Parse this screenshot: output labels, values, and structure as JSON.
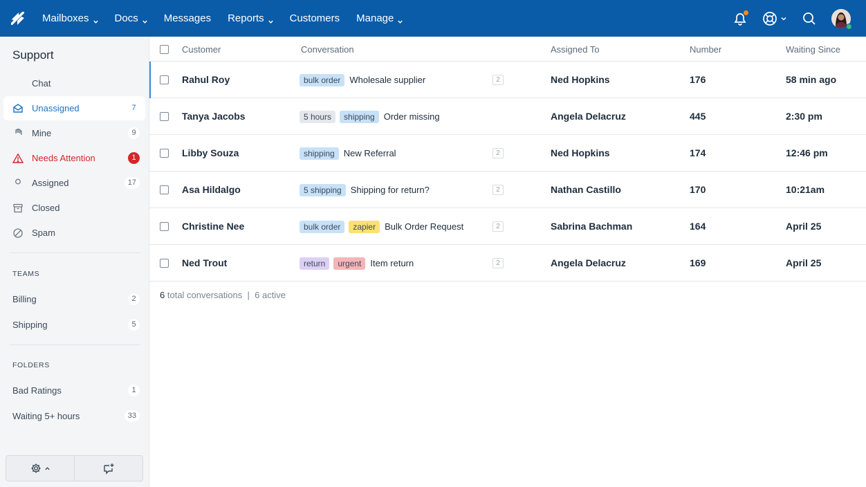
{
  "nav": {
    "items": [
      {
        "label": "Mailboxes",
        "dropdown": true
      },
      {
        "label": "Docs",
        "dropdown": true
      },
      {
        "label": "Messages",
        "dropdown": false
      },
      {
        "label": "Reports",
        "dropdown": true
      },
      {
        "label": "Customers",
        "dropdown": false
      },
      {
        "label": "Manage",
        "dropdown": true
      }
    ]
  },
  "sidebar": {
    "title": "Support",
    "items": [
      {
        "label": "Chat",
        "count": "",
        "icon": "chat-icon",
        "state": "normal"
      },
      {
        "label": "Unassigned",
        "count": "7",
        "icon": "inbox-icon",
        "state": "active"
      },
      {
        "label": "Mine",
        "count": "9",
        "icon": "hand-icon",
        "state": "normal"
      },
      {
        "label": "Needs Attention",
        "count": "1",
        "icon": "warning-icon",
        "state": "alert"
      },
      {
        "label": "Assigned",
        "count": "17",
        "icon": "user-icon",
        "state": "normal"
      },
      {
        "label": "Closed",
        "count": "",
        "icon": "archive-icon",
        "state": "normal"
      },
      {
        "label": "Spam",
        "count": "",
        "icon": "block-icon",
        "state": "normal"
      }
    ],
    "teams_heading": "TEAMS",
    "teams": [
      {
        "label": "Billing",
        "count": "2"
      },
      {
        "label": "Shipping",
        "count": "5"
      }
    ],
    "folders_heading": "FOLDERS",
    "folders": [
      {
        "label": "Bad Ratings",
        "count": "1"
      },
      {
        "label": "Waiting 5+ hours",
        "count": "33"
      }
    ]
  },
  "table": {
    "headers": {
      "customer": "Customer",
      "conversation": "Conversation",
      "assigned": "Assigned To",
      "number": "Number",
      "waiting": "Waiting Since"
    },
    "rows": [
      {
        "customer": "Rahul Roy",
        "tags": [
          {
            "text": "bulk order",
            "color": "#c7e1f7"
          }
        ],
        "subject": "Wholesale supplier",
        "thread": "2",
        "assigned": "Ned Hopkins",
        "number": "176",
        "waiting": "58 min ago",
        "selected": true
      },
      {
        "customer": "Tanya Jacobs",
        "tags": [
          {
            "text": "5 hours",
            "color": "#e4e7eb"
          },
          {
            "text": "shipping",
            "color": "#c7e1f7"
          }
        ],
        "subject": "Order missing",
        "thread": "",
        "assigned": "Angela Delacruz",
        "number": "445",
        "waiting": "2:30 pm",
        "selected": false
      },
      {
        "customer": "Libby Souza",
        "tags": [
          {
            "text": "shipping",
            "color": "#c7e1f7"
          }
        ],
        "subject": "New Referral",
        "thread": "2",
        "assigned": "Ned Hopkins",
        "number": "174",
        "waiting": "12:46 pm",
        "selected": false
      },
      {
        "customer": "Asa Hildalgo",
        "tags": [
          {
            "text": "5 shipping",
            "color": "#c7e1f7"
          }
        ],
        "subject": "Shipping for return?",
        "thread": "2",
        "assigned": "Nathan Castillo",
        "number": "170",
        "waiting": "10:21am",
        "selected": false
      },
      {
        "customer": "Christine Nee",
        "tags": [
          {
            "text": "bulk order",
            "color": "#c7e1f7"
          },
          {
            "text": "zapier",
            "color": "#fbe074"
          }
        ],
        "subject": "Bulk Order Request",
        "thread": "2",
        "assigned": "Sabrina Bachman",
        "number": "164",
        "waiting": "April 25",
        "selected": false
      },
      {
        "customer": "Ned Trout",
        "tags": [
          {
            "text": "return",
            "color": "#ddd0f5"
          },
          {
            "text": "urgent",
            "color": "#f5b5b8"
          }
        ],
        "subject": "Item return",
        "thread": "2",
        "assigned": "Angela Delacruz",
        "number": "169",
        "waiting": "April 25",
        "selected": false
      }
    ],
    "summary": {
      "total_count": "6",
      "total_label": "total conversations",
      "separator": "|",
      "active": "6 active"
    }
  },
  "colors": {
    "nav_bg": "#0a5ba8",
    "accent": "#1f72c2",
    "alert": "#d6252b",
    "notification_dot": "#f68a1f",
    "online": "#3cb878"
  }
}
